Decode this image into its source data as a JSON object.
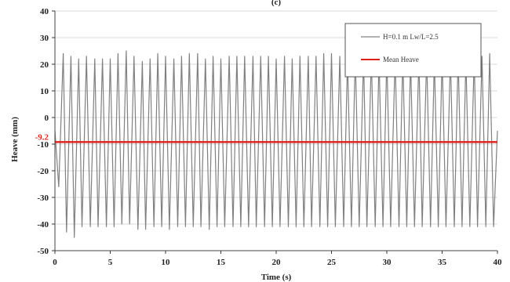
{
  "panel_label": "(c)",
  "chart_data": {
    "type": "line",
    "xlabel": "Time (s)",
    "ylabel": "Heave (mm)",
    "xlim": [
      0,
      40
    ],
    "ylim": [
      -50,
      40
    ],
    "xticks": [
      0,
      5,
      10,
      15,
      20,
      25,
      30,
      35,
      40
    ],
    "yticks": [
      -50,
      -40,
      -30,
      -20,
      -10,
      0,
      10,
      20,
      30,
      40
    ],
    "grid": "horizontal",
    "legend_position": "top-right",
    "series": [
      {
        "name": "H=0.1 m  Lw/L=2.5",
        "color": "#808080",
        "period_s": 0.71,
        "x": [
          0,
          0.35,
          0.75,
          1.05,
          1.45,
          1.75,
          2.15,
          2.45,
          2.85,
          3.2,
          3.6,
          3.9,
          4.3,
          4.65,
          5.0,
          5.35,
          5.7,
          6.05,
          6.45,
          6.75,
          7.15,
          7.5,
          7.9,
          8.2,
          8.6,
          8.95,
          9.3,
          9.65,
          10.0,
          10.35,
          10.75,
          11.1,
          11.45,
          11.8,
          12.15,
          12.5,
          12.9,
          13.2,
          13.6,
          13.95,
          14.3,
          14.65,
          15.0,
          15.35,
          15.75,
          16.1,
          16.45,
          16.8,
          17.15,
          17.5,
          17.9,
          18.2,
          18.6,
          18.95,
          19.3,
          19.65,
          20.0,
          20.35,
          20.75,
          21.1,
          21.45,
          21.8,
          22.15,
          22.5,
          22.9,
          23.2,
          23.6,
          23.95,
          24.3,
          24.65,
          25.0,
          25.35,
          25.75,
          26.1,
          26.45,
          26.8,
          27.15,
          27.5,
          27.9,
          28.2,
          28.6,
          28.95,
          29.3,
          29.65,
          30.0,
          30.35,
          30.75,
          31.1,
          31.45,
          31.8,
          32.15,
          32.5,
          32.9,
          33.2,
          33.6,
          33.95,
          34.3,
          34.65,
          35.0,
          35.35,
          35.75,
          36.1,
          36.45,
          36.8,
          37.15,
          37.5,
          37.9,
          38.2,
          38.6,
          38.95,
          39.3,
          39.65,
          40.0
        ],
        "y": [
          -5,
          -26,
          24,
          -43,
          23,
          -45,
          22,
          -41,
          23,
          -41,
          22,
          -41,
          22,
          -41,
          22,
          -41,
          24,
          -40,
          25,
          -40,
          23,
          -42,
          21,
          -42,
          22,
          -41,
          24,
          -41,
          23,
          -42,
          22,
          -41,
          23,
          -41,
          24,
          -41,
          24,
          -41,
          22,
          -42,
          23,
          -41,
          22,
          -41,
          23,
          -41,
          23,
          -41,
          23,
          -41,
          23,
          -41,
          23,
          -41,
          23,
          -41,
          22,
          -41,
          23,
          -41,
          22,
          -41,
          23,
          -41,
          23,
          -41,
          23,
          -41,
          24,
          -41,
          24,
          -41,
          23,
          -41,
          22,
          -41,
          24,
          -41,
          23,
          -41,
          23,
          -41,
          22,
          -41,
          23,
          -41,
          23,
          -41,
          23,
          -41,
          22,
          -41,
          23,
          -41,
          23,
          -41,
          22,
          -41,
          23,
          -41,
          23,
          -41,
          23,
          -41,
          22,
          -41,
          23,
          -41,
          23,
          -41,
          24,
          -41,
          -5
        ]
      },
      {
        "name": "Mean Heave",
        "color": "#e0201b",
        "value": -9.2
      }
    ],
    "annotations": [
      {
        "text": "-9.2",
        "y": -9.2,
        "color": "#e0201b"
      }
    ]
  }
}
